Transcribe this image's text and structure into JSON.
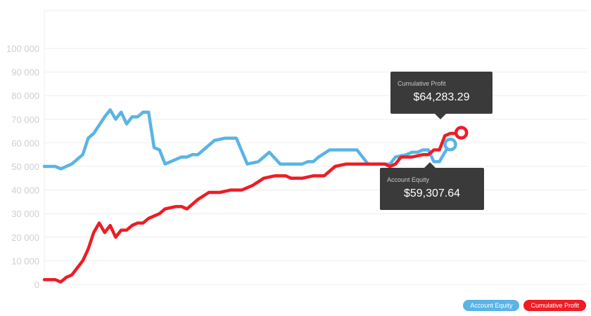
{
  "chart_data": {
    "type": "line",
    "title": "",
    "xlabel": "",
    "ylabel": "",
    "ylim": [
      0,
      110000
    ],
    "y_ticks": [
      0,
      10000,
      20000,
      30000,
      40000,
      50000,
      60000,
      70000,
      80000,
      90000,
      100000
    ],
    "y_tick_labels": [
      "0",
      "10 000",
      "20 000",
      "30 000",
      "40 000",
      "50 000",
      "60 000",
      "70 000",
      "80 000",
      "90 000",
      "100 000"
    ],
    "grid": true,
    "legend_position": "bottom-right",
    "x_count": 100,
    "series": [
      {
        "name": "Account Equity",
        "color": "#5ab4e5",
        "x": [
          0,
          2,
          3,
          5,
          7,
          8,
          9,
          11,
          12,
          13,
          14,
          15,
          16,
          17,
          18,
          19,
          20,
          21,
          22,
          24,
          25,
          26,
          27,
          28,
          29,
          30,
          31,
          33,
          35,
          37,
          39,
          41,
          43,
          44,
          45,
          47,
          48,
          49,
          50,
          52,
          53,
          55,
          57,
          59,
          60,
          61,
          62,
          63,
          64,
          66,
          67,
          68,
          69,
          70,
          71,
          72,
          73,
          74
        ],
        "values": [
          50000,
          50000,
          49000,
          51000,
          55000,
          62000,
          64000,
          71000,
          74000,
          70000,
          73000,
          68000,
          71000,
          71000,
          73000,
          73000,
          58000,
          57000,
          51000,
          53000,
          54000,
          54000,
          55000,
          55000,
          57000,
          59000,
          61000,
          62000,
          62000,
          51000,
          52000,
          56000,
          51000,
          51000,
          51000,
          51000,
          52000,
          52000,
          54000,
          57000,
          57000,
          57000,
          57000,
          51000,
          51000,
          51000,
          51000,
          51000,
          54000,
          55000,
          56000,
          56000,
          57000,
          57000,
          52000,
          52000,
          56000,
          59307.64
        ]
      },
      {
        "name": "Cumulative Profit",
        "color": "#ee1c24",
        "x": [
          0,
          2,
          3,
          4,
          5,
          7,
          8,
          9,
          10,
          11,
          12,
          13,
          14,
          15,
          16,
          17,
          18,
          19,
          20,
          21,
          22,
          24,
          25,
          26,
          27,
          28,
          30,
          32,
          34,
          36,
          38,
          40,
          42,
          43,
          44,
          45,
          47,
          49,
          51,
          53,
          55,
          57,
          60,
          62,
          63,
          64,
          65,
          67,
          69,
          70,
          71,
          72,
          73,
          74,
          75,
          76
        ],
        "values": [
          2000,
          2000,
          1000,
          3000,
          4000,
          10000,
          15000,
          22000,
          26000,
          22000,
          25000,
          20000,
          23000,
          23000,
          25000,
          26000,
          26000,
          28000,
          29000,
          30000,
          32000,
          33000,
          33000,
          32000,
          34000,
          36000,
          39000,
          39000,
          40000,
          40000,
          42000,
          45000,
          46000,
          46000,
          46000,
          45000,
          45000,
          46000,
          46000,
          50000,
          51000,
          51000,
          51000,
          51000,
          50000,
          51000,
          54000,
          54000,
          55000,
          55000,
          57000,
          57000,
          63000,
          64000,
          64000,
          64283.29
        ]
      }
    ],
    "tooltips": [
      {
        "label": "Cumulative Profit",
        "value": "$64,283.29"
      },
      {
        "label": "Account Equity",
        "value": "$59,307.64"
      }
    ]
  },
  "legend": {
    "items": [
      {
        "label": "Account Equity",
        "color": "#5ab4e5"
      },
      {
        "label": "Cumulative Profit",
        "color": "#ee1c24"
      }
    ]
  }
}
